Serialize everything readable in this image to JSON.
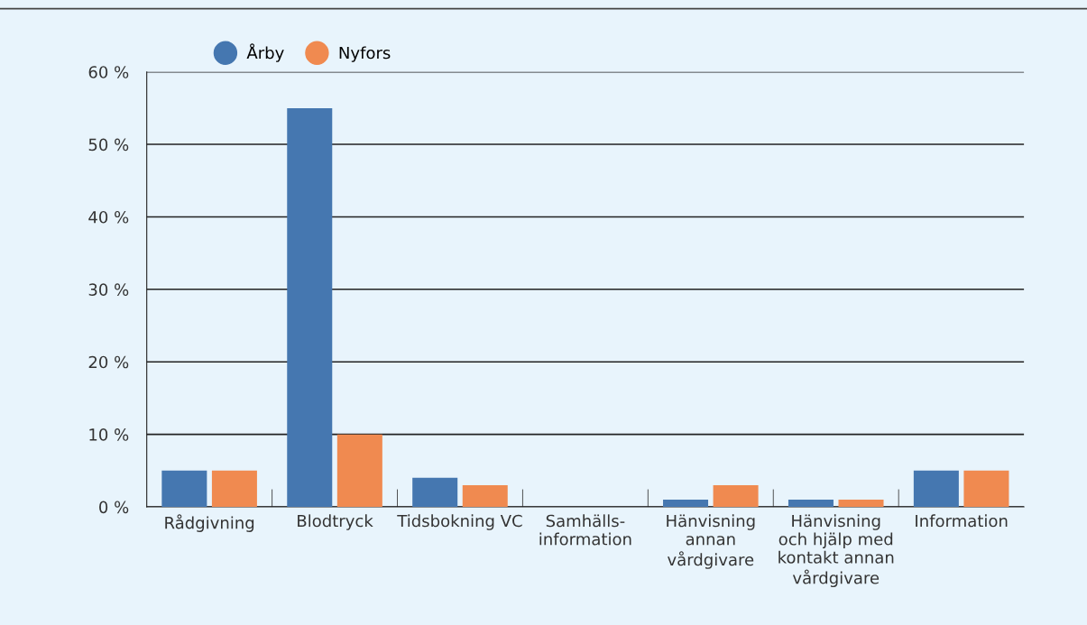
{
  "chart_data": {
    "type": "bar",
    "categories": [
      "Rådgivning",
      "Blodtryck",
      "Tidsbokning VC",
      "Samhälls-\ninformation",
      "Hänvisning\nannan\nvårdgivare",
      "Hänvisning\noch hjälp med\nkontakt annan\nvårdgivare",
      "Information"
    ],
    "series": [
      {
        "name": "Årby",
        "color": "#4577b0",
        "values": [
          5,
          55,
          4,
          0,
          1,
          1,
          5
        ]
      },
      {
        "name": "Nyfors",
        "color": "#f08a50",
        "values": [
          5,
          10,
          3,
          0,
          3,
          1,
          5
        ]
      }
    ],
    "ylim": [
      0,
      60
    ],
    "yticks": [
      {
        "value": 0,
        "label": "0 %"
      },
      {
        "value": 10,
        "label": "10 %"
      },
      {
        "value": 20,
        "label": "20 %"
      },
      {
        "value": 30,
        "label": "30 %"
      },
      {
        "value": 40,
        "label": "40 %"
      },
      {
        "value": 50,
        "label": "50 %"
      },
      {
        "value": 60,
        "label": "60 %"
      }
    ],
    "grid": "y",
    "legend": "top left"
  }
}
